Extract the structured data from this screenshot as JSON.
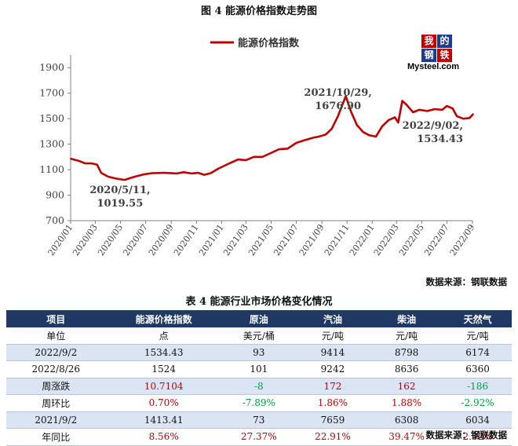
{
  "figure_title": "图 4  能源价格指数走势图",
  "source_note": "数据来源：钢联数据",
  "table_title": "表 4 能源行业市场价格变化情况",
  "logo": {
    "chars": [
      "我",
      "的",
      "钢",
      "铁"
    ],
    "text": "Mysteel.com",
    "colors": [
      "#c00000",
      "#1f3c8c",
      "#1f3c8c",
      "#c00000"
    ]
  },
  "colors": {
    "line": "#c00000",
    "axis": "#7f7f7f",
    "header_bg": "#1f3864",
    "alt_row": "#dbe4f3",
    "up": "#c00000",
    "down": "#00a040"
  },
  "chart_data": {
    "type": "line",
    "title": "",
    "legend": [
      "能源价格指数"
    ],
    "legend_position": "top-center",
    "xlabel": "",
    "ylabel": "",
    "ylim": [
      700,
      2000
    ],
    "yticks": [
      700,
      900,
      1100,
      1300,
      1500,
      1700,
      1900
    ],
    "xticks": [
      "2020/01",
      "2020/03",
      "2020/05",
      "2020/07",
      "2020/09",
      "2020/11",
      "2021/01",
      "2021/03",
      "2021/05",
      "2021/07",
      "2021/09",
      "2021/11",
      "2022/01",
      "2022/03",
      "2022/05",
      "2022/07",
      "2022/09"
    ],
    "series": [
      {
        "name": "能源价格指数",
        "points": [
          [
            "2020-01-02",
            1185
          ],
          [
            "2020-01-20",
            1170
          ],
          [
            "2020-02-05",
            1150
          ],
          [
            "2020-02-20",
            1150
          ],
          [
            "2020-03-05",
            1140
          ],
          [
            "2020-03-15",
            1075
          ],
          [
            "2020-04-01",
            1045
          ],
          [
            "2020-04-20",
            1030
          ],
          [
            "2020-05-11",
            1019.55
          ],
          [
            "2020-05-25",
            1035
          ],
          [
            "2020-06-10",
            1050
          ],
          [
            "2020-06-25",
            1062
          ],
          [
            "2020-07-15",
            1072
          ],
          [
            "2020-08-15",
            1075
          ],
          [
            "2020-09-15",
            1070
          ],
          [
            "2020-10-01",
            1080
          ],
          [
            "2020-10-20",
            1070
          ],
          [
            "2020-11-05",
            1075
          ],
          [
            "2020-11-20",
            1060
          ],
          [
            "2020-12-05",
            1072
          ],
          [
            "2020-12-25",
            1110
          ],
          [
            "2021-01-20",
            1150
          ],
          [
            "2021-02-10",
            1180
          ],
          [
            "2021-03-01",
            1175
          ],
          [
            "2021-03-20",
            1200
          ],
          [
            "2021-04-10",
            1200
          ],
          [
            "2021-04-30",
            1230
          ],
          [
            "2021-05-20",
            1260
          ],
          [
            "2021-06-10",
            1265
          ],
          [
            "2021-07-01",
            1310
          ],
          [
            "2021-07-20",
            1330
          ],
          [
            "2021-08-10",
            1350
          ],
          [
            "2021-08-25",
            1360
          ],
          [
            "2021-09-10",
            1375
          ],
          [
            "2021-09-25",
            1420
          ],
          [
            "2021-10-10",
            1520
          ],
          [
            "2021-10-29",
            1676.9
          ],
          [
            "2021-11-10",
            1560
          ],
          [
            "2021-11-25",
            1450
          ],
          [
            "2021-12-10",
            1395
          ],
          [
            "2021-12-25",
            1370
          ],
          [
            "2022-01-10",
            1360
          ],
          [
            "2022-01-25",
            1440
          ],
          [
            "2022-02-10",
            1490
          ],
          [
            "2022-02-25",
            1510
          ],
          [
            "2022-03-05",
            1470
          ],
          [
            "2022-03-15",
            1640
          ],
          [
            "2022-03-25",
            1610
          ],
          [
            "2022-04-10",
            1550
          ],
          [
            "2022-04-25",
            1570
          ],
          [
            "2022-05-15",
            1560
          ],
          [
            "2022-06-01",
            1575
          ],
          [
            "2022-06-20",
            1570
          ],
          [
            "2022-07-01",
            1600
          ],
          [
            "2022-07-15",
            1580
          ],
          [
            "2022-07-25",
            1520
          ],
          [
            "2022-08-10",
            1500
          ],
          [
            "2022-08-25",
            1505
          ],
          [
            "2022-09-02",
            1534.43
          ]
        ]
      }
    ],
    "annotations": [
      {
        "date": "2020-05-11",
        "lines": [
          "2020/5/11,",
          "1019.55"
        ]
      },
      {
        "date": "2021-10-29",
        "lines": [
          "2021/10/29,",
          "1676.90"
        ]
      },
      {
        "date": "2022-09-02",
        "lines": [
          "2022/9/02,",
          "1534.43"
        ]
      }
    ]
  },
  "table": {
    "headers": [
      "项目",
      "能源价格指数",
      "原油",
      "汽油",
      "柴油",
      "天然气"
    ],
    "rows": [
      {
        "cells": [
          "单位",
          "点",
          "美元/桶",
          "元/吨",
          "元/吨",
          "元/吨"
        ],
        "tone": [
          "",
          "",
          "",
          "",
          "",
          ""
        ]
      },
      {
        "cells": [
          "2022/9/2",
          "1534.43",
          "93",
          "9414",
          "8798",
          "6174"
        ],
        "tone": [
          "",
          "",
          "",
          "",
          "",
          ""
        ]
      },
      {
        "cells": [
          "2022/8/26",
          "1524",
          "101",
          "9242",
          "8636",
          "6360"
        ],
        "tone": [
          "",
          "",
          "",
          "",
          "",
          ""
        ]
      },
      {
        "cells": [
          "周涨跌",
          "10.7104",
          "-8",
          "172",
          "162",
          "-186"
        ],
        "tone": [
          "",
          "pos",
          "neg",
          "pos",
          "pos",
          "neg"
        ]
      },
      {
        "cells": [
          "周环比",
          "0.70%",
          "-7.89%",
          "1.86%",
          "1.88%",
          "-2.92%"
        ],
        "tone": [
          "",
          "pos",
          "neg",
          "pos",
          "pos",
          "neg"
        ]
      },
      {
        "cells": [
          "2021/9/2",
          "1413.41",
          "73",
          "7659",
          "6308",
          "6034"
        ],
        "tone": [
          "",
          "",
          "",
          "",
          "",
          ""
        ]
      },
      {
        "cells": [
          "年同比",
          "8.56%",
          "27.37%",
          "22.91%",
          "39.47%",
          "2.32%"
        ],
        "tone": [
          "",
          "pos",
          "pos",
          "pos",
          "pos",
          "pos"
        ]
      }
    ]
  }
}
